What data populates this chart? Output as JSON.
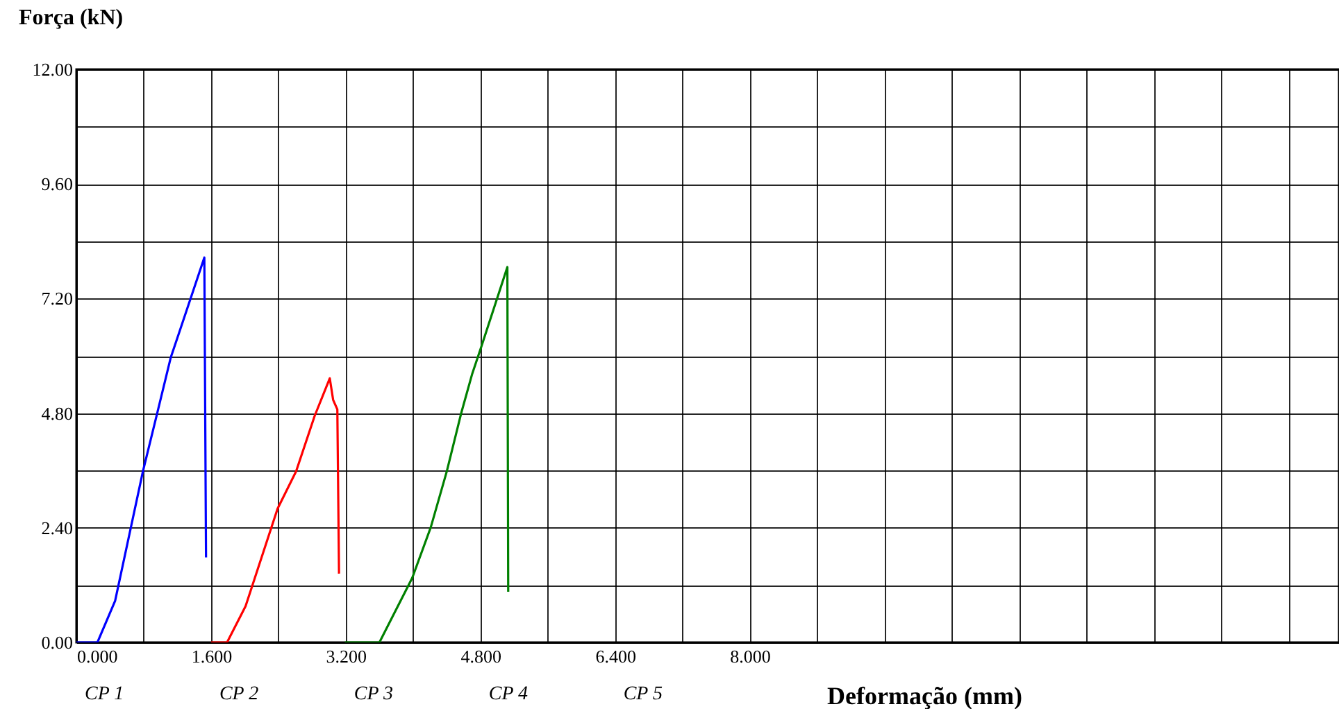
{
  "chart_data": {
    "type": "line",
    "xlabel": "Deformação (mm)",
    "ylabel": "Força (kN)",
    "xlim": [
      0,
      15.0
    ],
    "ylim": [
      0,
      12
    ],
    "xticks": [
      {
        "value": 0,
        "label": "0.000"
      },
      {
        "value": 0.8,
        "label": null
      },
      {
        "value": 1.6,
        "label": "1.600"
      },
      {
        "value": 2.4,
        "label": null
      },
      {
        "value": 3.2,
        "label": "3.200"
      },
      {
        "value": 4.0,
        "label": null
      },
      {
        "value": 4.8,
        "label": "4.800"
      },
      {
        "value": 5.6,
        "label": null
      },
      {
        "value": 6.4,
        "label": "6.400"
      },
      {
        "value": 7.2,
        "label": null
      },
      {
        "value": 8.0,
        "label": "8.000"
      },
      {
        "value": 8.8,
        "label": null
      },
      {
        "value": 9.6,
        "label": null
      },
      {
        "value": 10.4,
        "label": null
      },
      {
        "value": 11.2,
        "label": null
      },
      {
        "value": 12.0,
        "label": null
      },
      {
        "value": 12.8,
        "label": null
      },
      {
        "value": 13.6,
        "label": null
      },
      {
        "value": 14.4,
        "label": null
      }
    ],
    "yticks": [
      {
        "value": 0,
        "label": "0.00"
      },
      {
        "value": 1.2,
        "label": null
      },
      {
        "value": 2.4,
        "label": "2.40"
      },
      {
        "value": 3.6,
        "label": null
      },
      {
        "value": 4.8,
        "label": "4.80"
      },
      {
        "value": 6.0,
        "label": null
      },
      {
        "value": 7.2,
        "label": "7.20"
      },
      {
        "value": 8.4,
        "label": null
      },
      {
        "value": 9.6,
        "label": "9.60"
      },
      {
        "value": 10.8,
        "label": null
      },
      {
        "value": 12,
        "label": "12.00"
      }
    ],
    "grid": true,
    "legend": false,
    "marker": "none",
    "line_style": "solid",
    "series": [
      {
        "color": "#0000ff",
        "x": [
          0,
          0.25,
          0.46,
          0.79,
          0.96,
          1.12,
          1.37,
          1.52,
          1.54
        ],
        "values": [
          0,
          0,
          0.87,
          3.58,
          4.8,
          5.96,
          7.27,
          8.06,
          1.78
        ]
      },
      {
        "color": "#ff0000",
        "x": [
          1.6,
          1.79,
          2.01,
          2.39,
          2.61,
          2.83,
          3.01,
          3.05,
          3.1,
          3.12
        ],
        "values": [
          0,
          0,
          0.76,
          2.8,
          3.58,
          4.74,
          5.53,
          5.08,
          4.88,
          1.44
        ]
      },
      {
        "color": "#008000",
        "x": [
          3.19,
          3.6,
          3.99,
          4.21,
          4.4,
          4.57,
          4.7,
          4.81,
          5.12,
          5.13
        ],
        "values": [
          0,
          0,
          1.35,
          2.41,
          3.58,
          4.79,
          5.61,
          6.19,
          7.86,
          1.06
        ]
      }
    ],
    "annotations": [
      "CP 1",
      "CP 2",
      "CP 3",
      "CP 4",
      "CP 5"
    ]
  }
}
